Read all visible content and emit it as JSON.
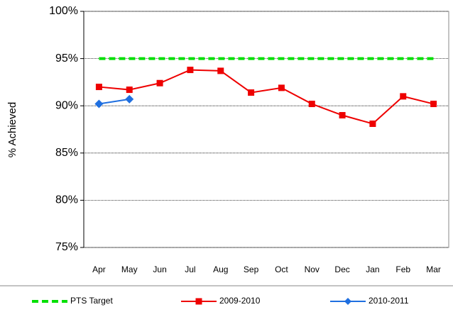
{
  "chart_data": {
    "type": "line",
    "y_label": "% Achieved",
    "categories": [
      "Apr",
      "May",
      "Jun",
      "Jul",
      "Aug",
      "Sep",
      "Oct",
      "Nov",
      "Dec",
      "Jan",
      "Feb",
      "Mar"
    ],
    "series": [
      {
        "name": "PTS Target",
        "color": "#00e000",
        "dash": true,
        "marker": "none",
        "values": [
          95,
          95,
          95,
          95,
          95,
          95,
          95,
          95,
          95,
          95,
          95,
          95
        ]
      },
      {
        "name": "2009-2010",
        "color": "#ee0000",
        "dash": false,
        "marker": "square",
        "values": [
          92.0,
          91.7,
          92.4,
          93.8,
          93.7,
          91.4,
          91.9,
          90.2,
          89.0,
          88.1,
          91.0,
          90.2
        ]
      },
      {
        "name": "2010-2011",
        "color": "#1f6fe0",
        "dash": false,
        "marker": "diamond",
        "values": [
          90.2,
          90.7,
          null,
          null,
          null,
          null,
          null,
          null,
          null,
          null,
          null,
          null
        ]
      }
    ],
    "ylim": [
      75,
      100
    ],
    "yticks": [
      {
        "value": 75,
        "label": "75%"
      },
      {
        "value": 80,
        "label": "80%"
      },
      {
        "value": 85,
        "label": "85%"
      },
      {
        "value": 90,
        "label": "90%"
      },
      {
        "value": 95,
        "label": "95%"
      },
      {
        "value": 100,
        "label": "100%"
      }
    ],
    "grid": true,
    "legend": "bottom"
  }
}
